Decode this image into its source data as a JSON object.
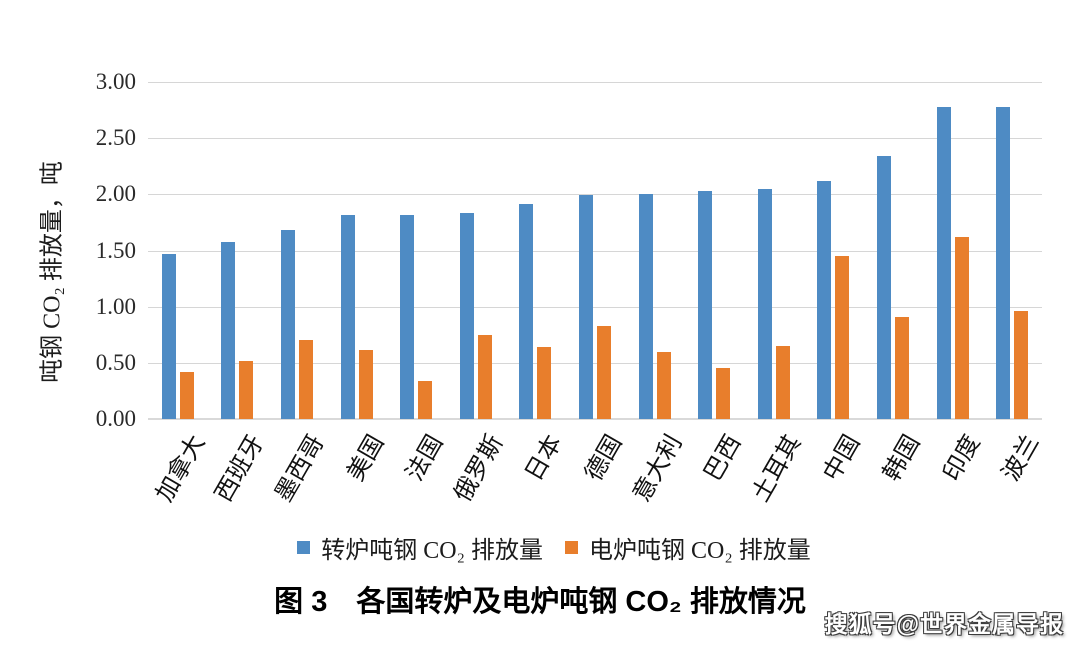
{
  "watermark": "搜狐号@世界金属导报",
  "chart_data": {
    "type": "bar",
    "title": "图 3　各国转炉及电炉吨钢 CO₂ 排放情况",
    "xlabel": "",
    "ylabel": "吨钢 CO₂ 排放量，吨",
    "ylim": [
      0,
      3
    ],
    "ytick_labels": [
      "0.00",
      "0.50",
      "1.00",
      "1.50",
      "2.00",
      "2.50",
      "3.00"
    ],
    "ytick_values": [
      0,
      0.5,
      1.0,
      1.5,
      2.0,
      2.5,
      3.0
    ],
    "grid": true,
    "legend_position": "bottom",
    "categories": [
      "加拿大",
      "西班牙",
      "墨西哥",
      "美国",
      "法国",
      "俄罗斯",
      "日本",
      "德国",
      "意大利",
      "巴西",
      "土耳其",
      "中国",
      "韩国",
      "印度",
      "波兰"
    ],
    "series": [
      {
        "name": "转炉吨钢 CO₂ 排放量",
        "color": "#4E8BC4",
        "values": [
          1.47,
          1.58,
          1.68,
          1.82,
          1.82,
          1.83,
          1.91,
          1.99,
          2.0,
          2.03,
          2.05,
          2.12,
          2.34,
          2.78,
          2.78
        ]
      },
      {
        "name": "电炉吨钢 CO₂ 排放量",
        "color": "#E87E2C",
        "values": [
          0.42,
          0.52,
          0.7,
          0.61,
          0.34,
          0.75,
          0.64,
          0.83,
          0.6,
          0.45,
          0.65,
          1.45,
          0.91,
          1.62,
          0.96
        ]
      }
    ]
  }
}
